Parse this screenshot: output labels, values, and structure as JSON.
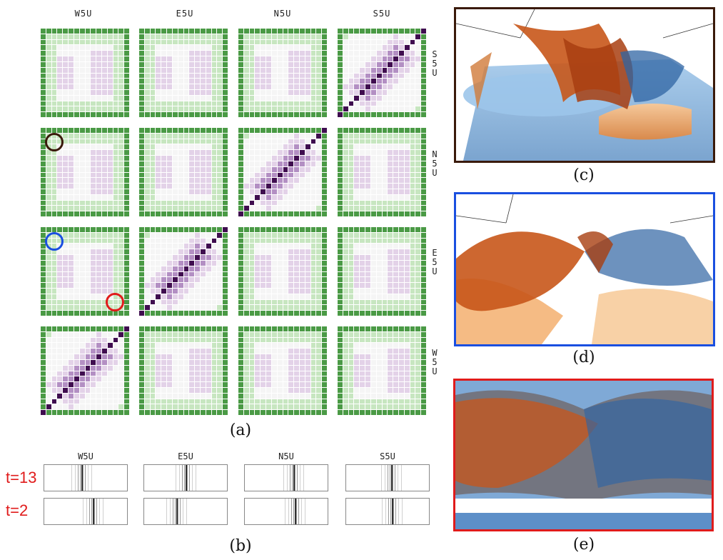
{
  "panel_a": {
    "column_labels": [
      "W5U",
      "E5U",
      "N5U",
      "S5U"
    ],
    "row_labels": [
      "S5U",
      "N5U",
      "E5U",
      "W5U"
    ],
    "caption": "(a)",
    "marker_colors": {
      "brown": "#3a1a0a",
      "blue": "#1a4fe0",
      "red": "#e01b1b"
    }
  },
  "panel_b": {
    "column_labels": [
      "W5U",
      "E5U",
      "N5U",
      "S5U"
    ],
    "row_labels": [
      "t=13",
      "t=2"
    ],
    "caption": "(b)",
    "label_color": "#e01b1b"
  },
  "panel_c": {
    "caption": "(c)",
    "border_color": "#3a1a0a"
  },
  "panel_d": {
    "caption": "(d)",
    "border_color": "#1a4fe0"
  },
  "panel_e": {
    "caption": "(e)",
    "border_color": "#e01b1b"
  },
  "colors": {
    "green_dark": "#4a9a45",
    "green_light": "#c7e6c0",
    "white": "#f5f5f5",
    "purple_light": "#e3d2e8",
    "purple_mid": "#b38fc3",
    "purple_dark": "#3f0d4f",
    "orange": "#c8561a",
    "blue_surface": "#6a9fd1"
  }
}
